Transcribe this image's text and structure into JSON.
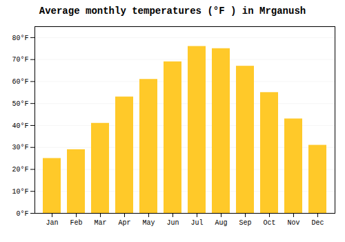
{
  "chart_data": {
    "type": "bar",
    "title": "Average monthly temperatures (°F ) in Mrganush",
    "categories": [
      "Jan",
      "Feb",
      "Mar",
      "Apr",
      "May",
      "Jun",
      "Jul",
      "Aug",
      "Sep",
      "Oct",
      "Nov",
      "Dec"
    ],
    "values": [
      25,
      29,
      41,
      53,
      61,
      69,
      76,
      75,
      67,
      55,
      43,
      31
    ],
    "color": "#FFC929",
    "ylim": [
      0,
      85
    ],
    "yticks": [
      {
        "value": 0,
        "label": "0°F"
      },
      {
        "value": 10,
        "label": "10°F"
      },
      {
        "value": 20,
        "label": "20°F"
      },
      {
        "value": 30,
        "label": "30°F"
      },
      {
        "value": 40,
        "label": "40°F"
      },
      {
        "value": 50,
        "label": "50°F"
      },
      {
        "value": 60,
        "label": "60°F"
      },
      {
        "value": 70,
        "label": "70°F"
      },
      {
        "value": 80,
        "label": "80°F"
      }
    ],
    "grid": true
  }
}
